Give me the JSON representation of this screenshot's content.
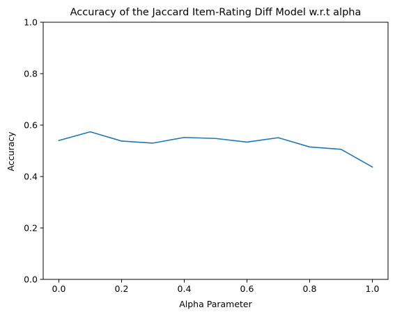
{
  "chart_data": {
    "type": "line",
    "title": "Accuracy of the Jaccard Item-Rating Diff Model w.r.t alpha",
    "xlabel": "Alpha Parameter",
    "ylabel": "Accuracy",
    "xlim": [
      -0.05,
      1.05
    ],
    "ylim": [
      0,
      1
    ],
    "x_ticks": [
      0.0,
      0.2,
      0.4,
      0.6,
      0.8,
      1.0
    ],
    "x_tick_labels": [
      "0.0",
      "0.2",
      "0.4",
      "0.6",
      "0.8",
      "1.0"
    ],
    "y_ticks": [
      0.0,
      0.2,
      0.4,
      0.6,
      0.8,
      1.0
    ],
    "y_tick_labels": [
      "0.0",
      "0.2",
      "0.4",
      "0.6",
      "0.8",
      "1.0"
    ],
    "grid": false,
    "legend": "none",
    "series": [
      {
        "color": "#1f77b4",
        "x": [
          0.0,
          0.1,
          0.2,
          0.3,
          0.4,
          0.5,
          0.6,
          0.7,
          0.8,
          0.9,
          1.0
        ],
        "y": [
          0.54,
          0.574,
          0.538,
          0.53,
          0.552,
          0.548,
          0.534,
          0.551,
          0.515,
          0.506,
          0.437
        ]
      }
    ]
  }
}
